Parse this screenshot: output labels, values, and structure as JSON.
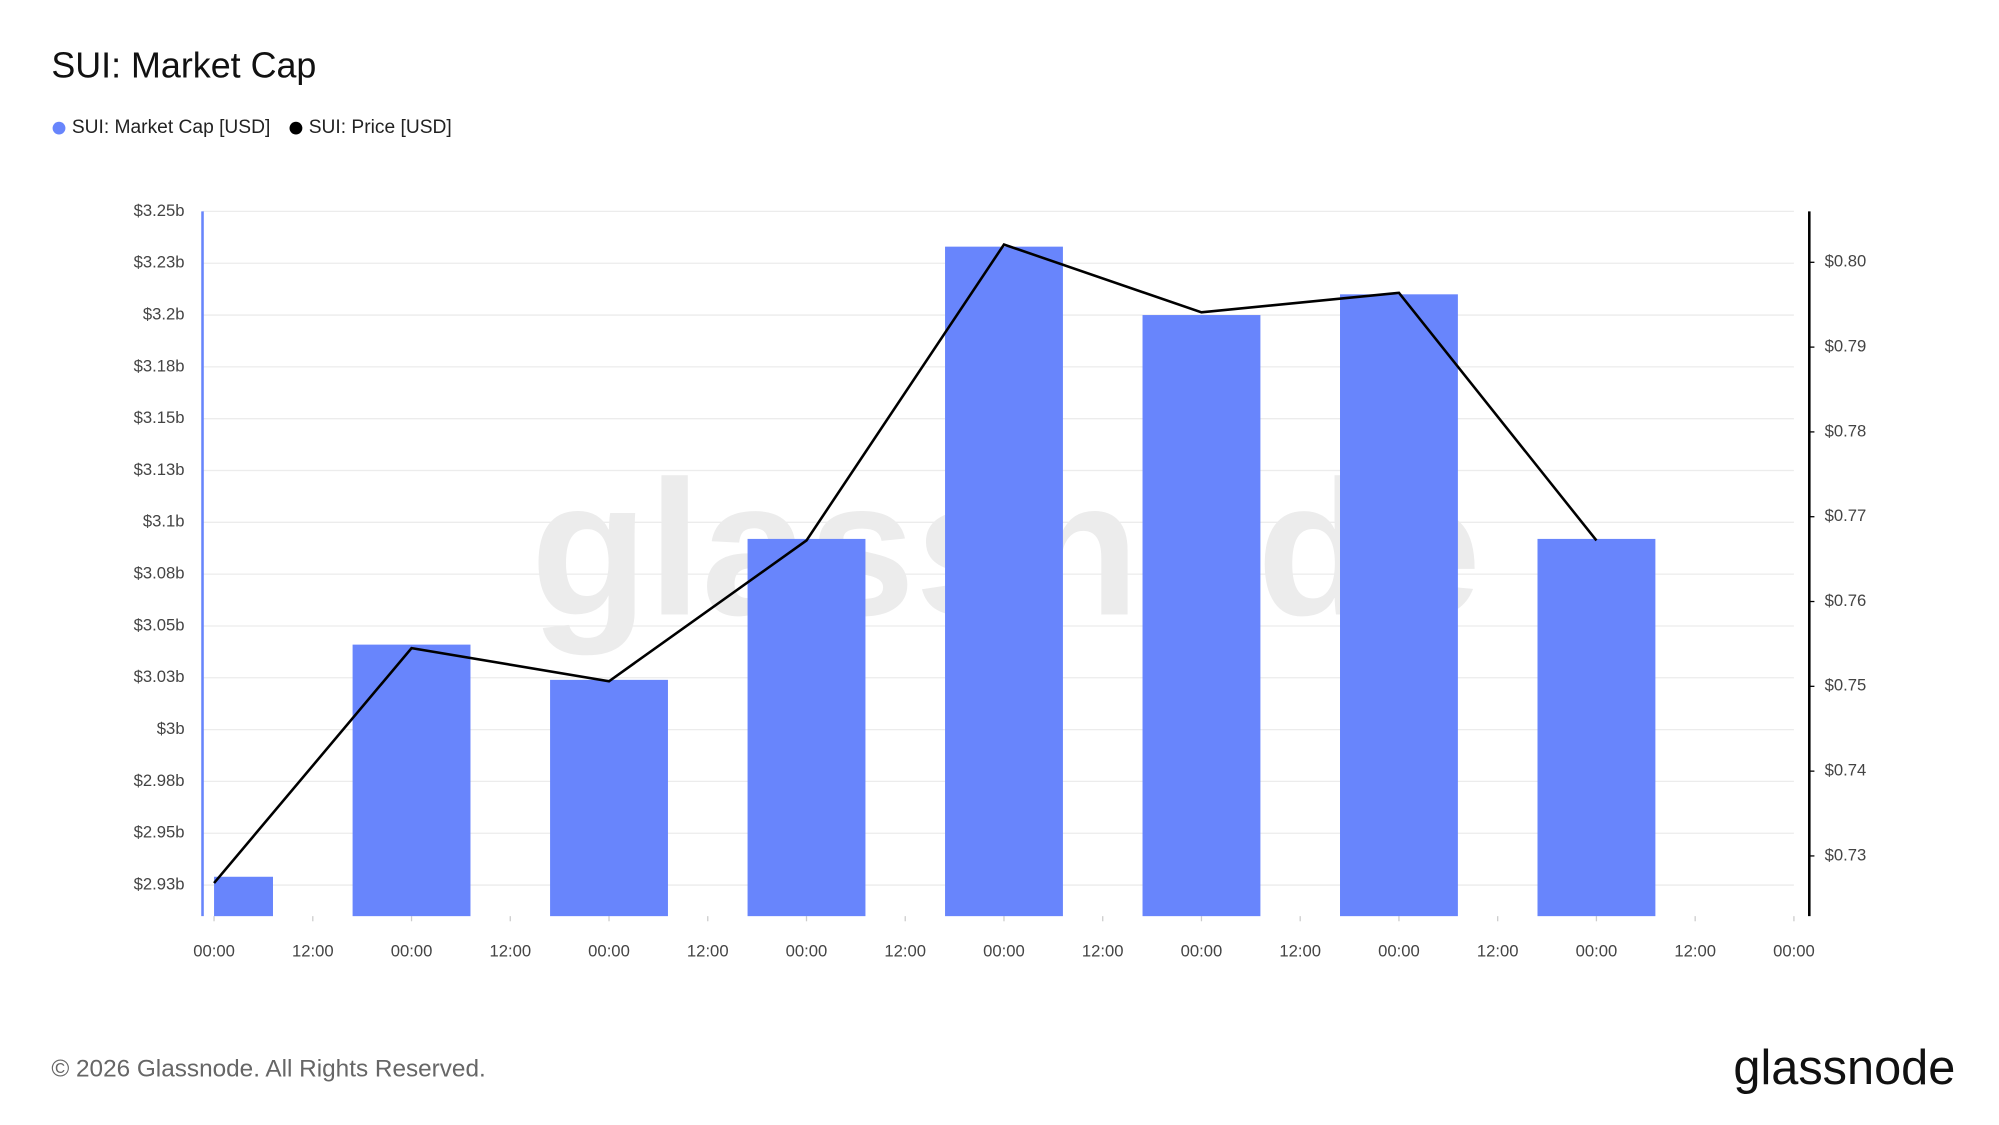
{
  "chart_data": {
    "type": "bar",
    "title": "SUI: Market Cap",
    "watermark": "glassnode",
    "footer": "© 2026 Glassnode. All Rights Reserved.",
    "logo": "glassnode",
    "categories": [
      "00:00",
      "12:00",
      "00:00",
      "12:00",
      "00:00",
      "12:00",
      "00:00",
      "12:00",
      "00:00",
      "12:00",
      "00:00",
      "12:00",
      "00:00",
      "12:00",
      "00:00",
      "12:00",
      "00:00"
    ],
    "series": [
      {
        "name": "SUI: Market Cap [USD]",
        "type": "bar",
        "color": "#6885fc",
        "values": [
          2929000000,
          null,
          3041000000,
          null,
          3024000000,
          null,
          3092000000,
          null,
          3233000000,
          null,
          3200000000,
          null,
          3210000000,
          null,
          3092000000,
          null,
          null
        ]
      },
      {
        "name": "SUI: Price [USD]",
        "type": "line",
        "color": "#000000",
        "axis": "y2",
        "values": [
          0.7268,
          null,
          0.7545,
          null,
          0.7506,
          null,
          0.7672,
          null,
          0.8021,
          null,
          0.7941,
          null,
          0.7964,
          null,
          0.7672,
          null,
          null
        ]
      }
    ],
    "ylim": [
      2910000000,
      3250000000
    ],
    "yticks": [
      {
        "value": 2925000000,
        "label": "$2.93b"
      },
      {
        "value": 2950000000,
        "label": "$2.95b"
      },
      {
        "value": 2975000000,
        "label": "$2.98b"
      },
      {
        "value": 3000000000,
        "label": "$3b"
      },
      {
        "value": 3025000000,
        "label": "$3.03b"
      },
      {
        "value": 3050000000,
        "label": "$3.05b"
      },
      {
        "value": 3075000000,
        "label": "$3.08b"
      },
      {
        "value": 3100000000,
        "label": "$3.1b"
      },
      {
        "value": 3125000000,
        "label": "$3.13b"
      },
      {
        "value": 3150000000,
        "label": "$3.15b"
      },
      {
        "value": 3175000000,
        "label": "$3.18b"
      },
      {
        "value": 3200000000,
        "label": "$3.2b"
      },
      {
        "value": 3225000000,
        "label": "$3.23b"
      },
      {
        "value": 3250000000,
        "label": "$3.25b"
      }
    ],
    "y2lim": [
      0.7229,
      0.806
    ],
    "y2ticks": [
      {
        "value": 0.73,
        "label": "$0.73"
      },
      {
        "value": 0.74,
        "label": "$0.74"
      },
      {
        "value": 0.75,
        "label": "$0.75"
      },
      {
        "value": 0.76,
        "label": "$0.76"
      },
      {
        "value": 0.77,
        "label": "$0.77"
      },
      {
        "value": 0.78,
        "label": "$0.78"
      },
      {
        "value": 0.79,
        "label": "$0.79"
      },
      {
        "value": 0.8,
        "label": "$0.80"
      }
    ],
    "grid": true
  }
}
